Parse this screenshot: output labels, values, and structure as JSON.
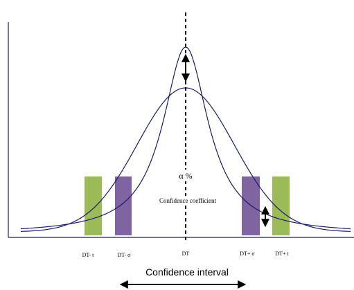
{
  "labels": {
    "alpha": "α %",
    "coefficient": "Confidence coefficient",
    "interval": "Confidence interval"
  },
  "ticks": {
    "dt_minus_t": "DT- t",
    "dt_minus_sigma": "DT- σ",
    "dt": "DT",
    "dt_plus_sigma": "DT+ σ",
    "dt_plus_t": "DT+ t"
  },
  "colors": {
    "curve": "#1a1a6e",
    "t_bar": "#9bbb59",
    "sigma_bar": "#8064a2",
    "axis": "#1a1a6e"
  }
}
